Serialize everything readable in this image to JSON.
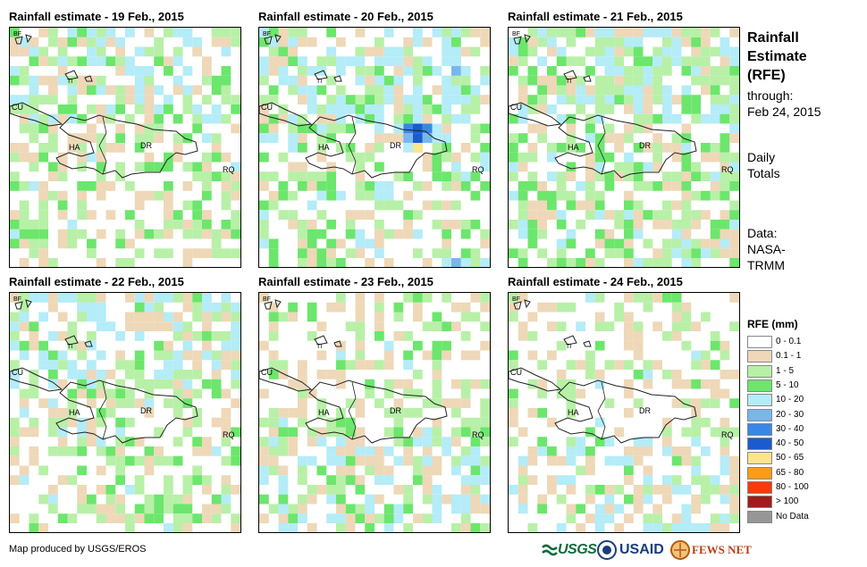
{
  "panels": [
    {
      "title": "Rainfall estimate - 19 Feb., 2015"
    },
    {
      "title": "Rainfall estimate - 20 Feb., 2015"
    },
    {
      "title": "Rainfall estimate - 21 Feb., 2015"
    },
    {
      "title": "Rainfall estimate - 22 Feb., 2015"
    },
    {
      "title": "Rainfall estimate - 23 Feb., 2015"
    },
    {
      "title": "Rainfall estimate - 24 Feb., 2015"
    }
  ],
  "map_labels": {
    "bf": "BF",
    "ti": "TI",
    "cu": "CU",
    "ha": "HA",
    "dr": "DR",
    "rq": "RQ"
  },
  "side": {
    "title_line1": "Rainfall",
    "title_line2": "Estimate",
    "title_line3": "(RFE)",
    "through_label": "through:",
    "through_date": "Feb 24, 2015",
    "totals_line1": "Daily",
    "totals_line2": "Totals",
    "data_line1": "Data:",
    "data_line2": "NASA-",
    "data_line3": "TRMM"
  },
  "legend": {
    "title": "RFE (mm)",
    "items": [
      {
        "label": "0 - 0.1",
        "color": "#ffffff"
      },
      {
        "label": "0.1 - 1",
        "color": "#eed8b8"
      },
      {
        "label": "1 - 5",
        "color": "#b8f0a8"
      },
      {
        "label": "5 - 10",
        "color": "#6ce66c"
      },
      {
        "label": "10 - 20",
        "color": "#b4ecf8"
      },
      {
        "label": "20 - 30",
        "color": "#78b6ee"
      },
      {
        "label": "30 - 40",
        "color": "#3a86e6"
      },
      {
        "label": "40 - 50",
        "color": "#1c5ad0"
      },
      {
        "label": "50 - 65",
        "color": "#fce48c"
      },
      {
        "label": "65 - 80",
        "color": "#fc9c18"
      },
      {
        "label": "80 - 100",
        "color": "#f83a08"
      },
      {
        "label": "> 100",
        "color": "#a01c1c"
      },
      {
        "label": "No Data",
        "color": "#969696"
      }
    ]
  },
  "footer": {
    "credit": "Map produced by USGS/EROS"
  },
  "logos": {
    "usgs": "USGS",
    "usaid": "USAID",
    "fewsnet": "FEWS NET"
  }
}
